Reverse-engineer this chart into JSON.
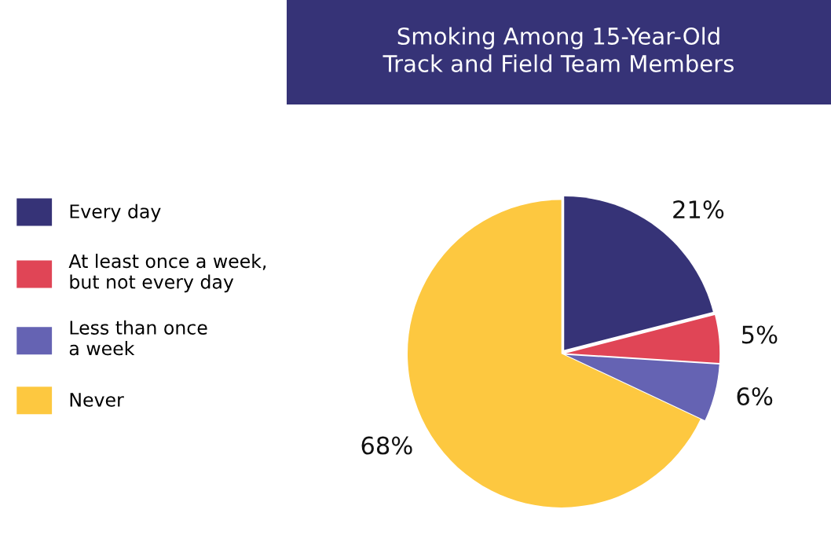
{
  "chart_data": {
    "type": "pie",
    "title": "Smoking Among 15-Year-Old\nTrack and Field Team Members",
    "categories": [
      "Every day",
      "At least once a week,\nbut not every day",
      "Less than once\na week",
      "Never"
    ],
    "values": [
      21,
      5,
      6,
      68
    ],
    "value_labels": [
      "21%",
      "5%",
      "6%",
      "68%"
    ],
    "colors": [
      "#363377",
      "#e04556",
      "#6563b3",
      "#fdc840"
    ],
    "legend": "left"
  }
}
